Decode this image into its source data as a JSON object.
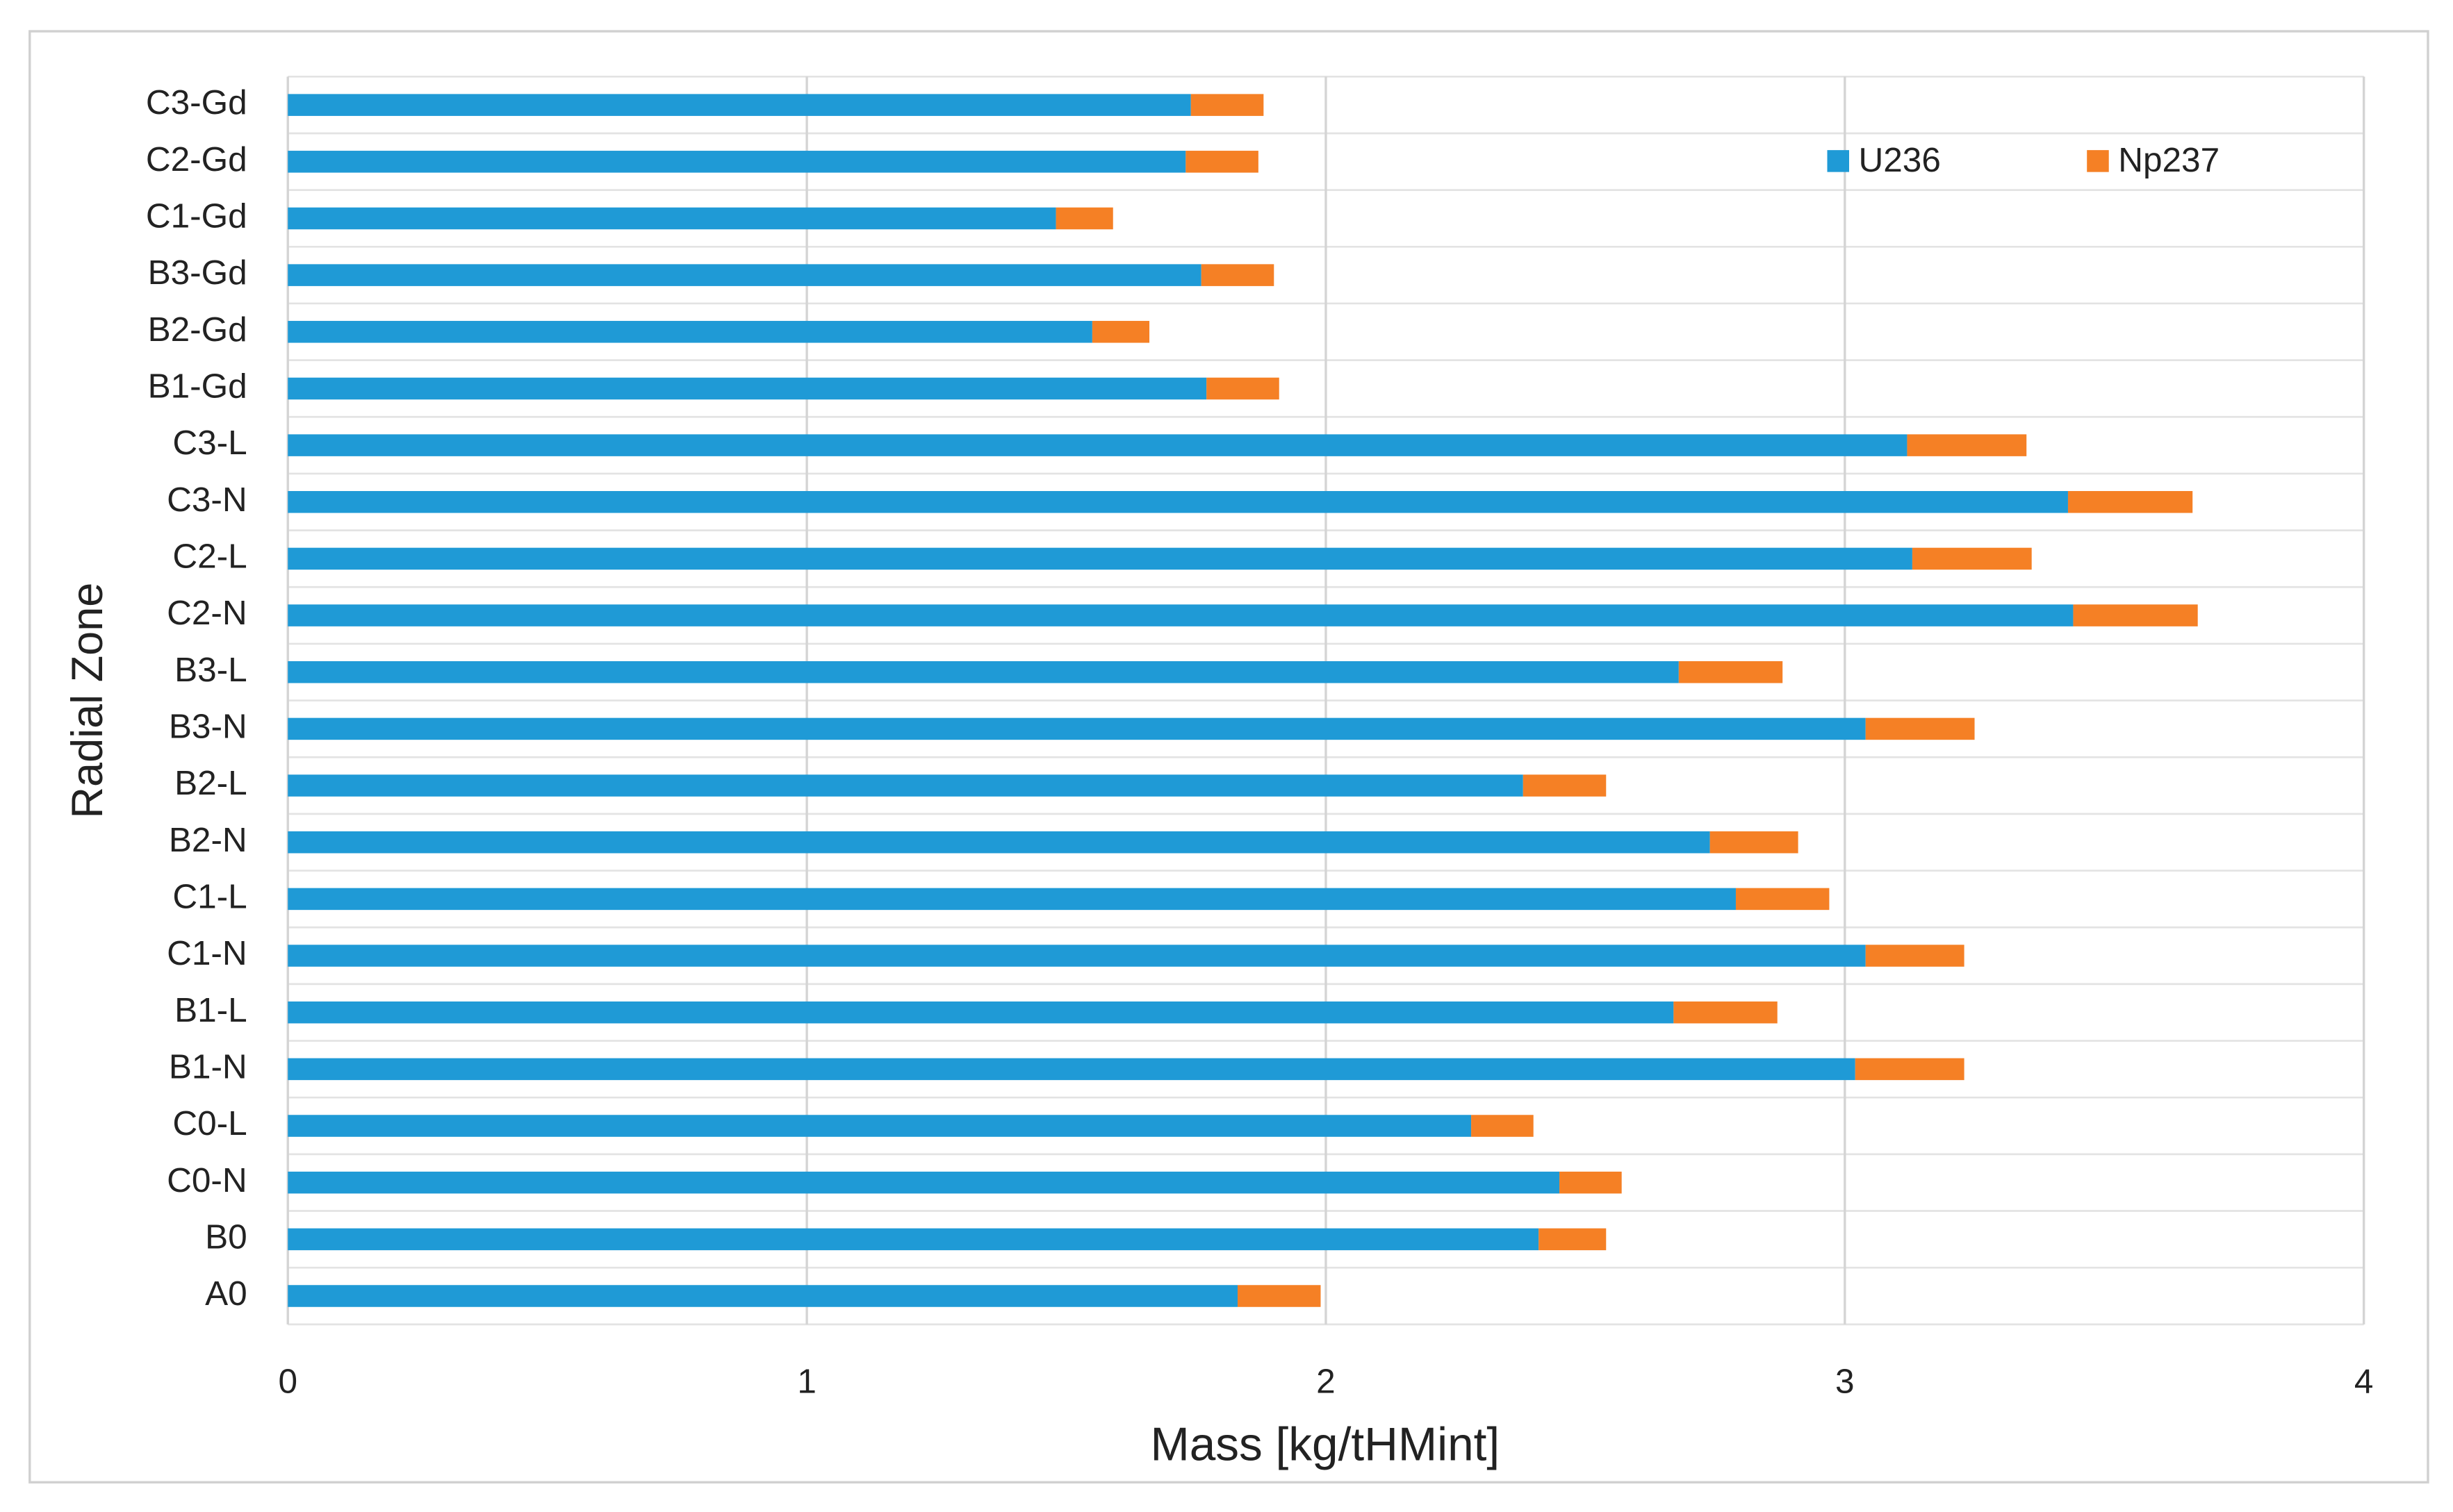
{
  "chart_data": {
    "type": "stacked-bar-horizontal",
    "y_label": "Radial Zone",
    "x_label": "Mass [kg/tHMint]",
    "categories": [
      "A0",
      "B0",
      "C0-N",
      "C0-L",
      "B1-N",
      "B1-L",
      "C1-N",
      "C1-L",
      "B2-N",
      "B2-L",
      "B3-N",
      "B3-L",
      "C2-N",
      "C2-L",
      "C3-N",
      "C3-L",
      "B1-Gd",
      "B2-Gd",
      "B3-Gd",
      "C1-Gd",
      "C2-Gd",
      "C3-Gd"
    ],
    "series": [
      {
        "name": "U236",
        "color": "#1f9ad6",
        "values": [
          1.83,
          2.41,
          2.45,
          2.28,
          3.02,
          2.67,
          3.04,
          2.79,
          2.74,
          2.38,
          3.04,
          2.68,
          3.44,
          3.13,
          3.43,
          3.12,
          1.77,
          1.55,
          1.76,
          1.48,
          1.73,
          1.74
        ]
      },
      {
        "name": "Np237",
        "color": "#f58025",
        "values": [
          0.16,
          0.13,
          0.12,
          0.12,
          0.21,
          0.2,
          0.19,
          0.18,
          0.17,
          0.16,
          0.21,
          0.2,
          0.24,
          0.23,
          0.24,
          0.23,
          0.14,
          0.11,
          0.14,
          0.11,
          0.14,
          0.14
        ]
      }
    ],
    "xlim": [
      0,
      4
    ],
    "xticks": [
      0,
      1,
      2,
      3,
      4
    ],
    "grid": true,
    "legend": "top-right"
  }
}
